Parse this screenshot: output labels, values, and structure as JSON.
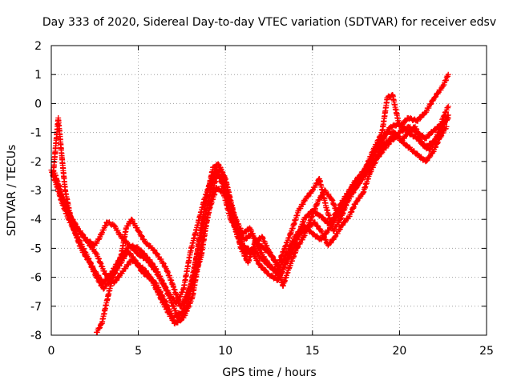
{
  "chart_data": {
    "type": "scatter",
    "title": "Day 333 of 2020, Sidereal Day-to-day VTEC variation (SDTVAR) for receiver edsv",
    "xlabel": "GPS time / hours",
    "ylabel": "SDTVAR / TECUs",
    "xlim": [
      0,
      25
    ],
    "ylim": [
      -8,
      2
    ],
    "xticks": [
      "0",
      "5",
      "10",
      "15",
      "20",
      "25"
    ],
    "yticks": [
      "-8",
      "-7",
      "-6",
      "-5",
      "-4",
      "-3",
      "-2",
      "-1",
      "0",
      "1",
      "2"
    ],
    "grid": true,
    "marker": "+",
    "colors": {
      "series": "#ff0000",
      "grid": "#a0a0a0",
      "axis": "#000000"
    },
    "series": [
      {
        "values": [
          [
            0.0,
            -2.3
          ],
          [
            0.3,
            -2.8
          ],
          [
            0.6,
            -3.4
          ],
          [
            1.0,
            -4.0
          ],
          [
            1.5,
            -4.6
          ],
          [
            2.0,
            -5.2
          ],
          [
            2.5,
            -5.8
          ],
          [
            3.0,
            -6.2
          ],
          [
            3.5,
            -5.8
          ],
          [
            4.0,
            -5.3
          ],
          [
            4.5,
            -4.9
          ],
          [
            5.0,
            -5.0
          ],
          [
            5.5,
            -5.3
          ],
          [
            6.0,
            -5.7
          ],
          [
            6.5,
            -6.3
          ],
          [
            7.0,
            -7.0
          ],
          [
            7.4,
            -7.5
          ],
          [
            7.8,
            -7.0
          ],
          [
            8.2,
            -5.8
          ],
          [
            8.6,
            -4.3
          ],
          [
            9.0,
            -3.0
          ],
          [
            9.3,
            -2.2
          ],
          [
            9.6,
            -2.1
          ],
          [
            10.0,
            -2.6
          ],
          [
            10.4,
            -3.6
          ],
          [
            10.8,
            -4.6
          ],
          [
            11.2,
            -5.2
          ],
          [
            11.6,
            -5.0
          ],
          [
            12.0,
            -5.3
          ],
          [
            12.5,
            -5.6
          ],
          [
            13.0,
            -5.8
          ],
          [
            13.5,
            -5.2
          ],
          [
            14.0,
            -4.6
          ],
          [
            14.5,
            -4.2
          ],
          [
            15.0,
            -4.5
          ],
          [
            15.5,
            -4.7
          ],
          [
            16.0,
            -4.3
          ],
          [
            16.5,
            -3.8
          ],
          [
            17.0,
            -3.2
          ],
          [
            17.5,
            -2.9
          ],
          [
            18.0,
            -2.5
          ],
          [
            18.5,
            -2.0
          ],
          [
            19.0,
            -1.5
          ],
          [
            19.5,
            -1.2
          ],
          [
            20.0,
            -1.0
          ],
          [
            20.5,
            -0.8
          ],
          [
            21.0,
            -1.0
          ],
          [
            21.5,
            -1.2
          ],
          [
            22.0,
            -0.9
          ],
          [
            22.5,
            -0.7
          ],
          [
            22.8,
            -0.5
          ]
        ]
      },
      {
        "values": [
          [
            0.2,
            -2.4
          ],
          [
            0.5,
            -3.1
          ],
          [
            1.0,
            -3.8
          ],
          [
            1.5,
            -4.3
          ],
          [
            2.0,
            -4.7
          ],
          [
            2.5,
            -4.9
          ],
          [
            2.8,
            -4.6
          ],
          [
            3.2,
            -4.1
          ],
          [
            3.6,
            -4.2
          ],
          [
            4.0,
            -4.6
          ],
          [
            4.5,
            -4.9
          ],
          [
            5.0,
            -5.2
          ],
          [
            5.5,
            -5.4
          ],
          [
            6.0,
            -5.8
          ],
          [
            6.4,
            -6.2
          ],
          [
            6.8,
            -6.6
          ],
          [
            7.2,
            -6.9
          ],
          [
            7.6,
            -6.4
          ],
          [
            8.0,
            -5.1
          ],
          [
            8.4,
            -4.2
          ],
          [
            8.8,
            -3.3
          ],
          [
            9.2,
            -2.6
          ],
          [
            9.5,
            -2.3
          ],
          [
            9.9,
            -2.9
          ],
          [
            10.3,
            -3.8
          ],
          [
            10.7,
            -4.6
          ],
          [
            11.0,
            -4.9
          ],
          [
            11.5,
            -5.1
          ],
          [
            12.0,
            -5.6
          ],
          [
            12.5,
            -5.9
          ],
          [
            13.0,
            -6.1
          ],
          [
            13.5,
            -5.5
          ],
          [
            14.0,
            -4.9
          ],
          [
            14.5,
            -4.0
          ],
          [
            15.0,
            -3.7
          ],
          [
            15.5,
            -3.9
          ],
          [
            16.0,
            -4.2
          ],
          [
            16.5,
            -3.6
          ],
          [
            17.0,
            -3.1
          ],
          [
            17.5,
            -2.7
          ],
          [
            18.0,
            -2.3
          ],
          [
            18.5,
            -1.6
          ],
          [
            19.0,
            -1.0
          ],
          [
            19.3,
            0.2
          ],
          [
            19.6,
            0.3
          ],
          [
            20.0,
            -0.8
          ],
          [
            20.5,
            -0.5
          ],
          [
            21.0,
            -0.6
          ],
          [
            21.5,
            -0.3
          ],
          [
            22.0,
            0.2
          ],
          [
            22.5,
            0.6
          ],
          [
            22.8,
            1.0
          ]
        ]
      },
      {
        "values": [
          [
            0.1,
            -2.5
          ],
          [
            0.4,
            -0.5
          ],
          [
            0.6,
            -1.8
          ],
          [
            0.8,
            -3.0
          ],
          [
            1.2,
            -4.2
          ],
          [
            1.7,
            -5.0
          ],
          [
            2.2,
            -5.5
          ],
          [
            2.6,
            -6.0
          ],
          [
            3.0,
            -6.4
          ],
          [
            3.5,
            -6.0
          ],
          [
            4.0,
            -5.5
          ],
          [
            4.4,
            -5.1
          ],
          [
            4.8,
            -5.4
          ],
          [
            5.2,
            -5.8
          ],
          [
            5.6,
            -6.0
          ],
          [
            6.0,
            -6.2
          ],
          [
            6.5,
            -6.8
          ],
          [
            7.0,
            -7.4
          ],
          [
            7.5,
            -7.2
          ],
          [
            8.0,
            -6.3
          ],
          [
            8.5,
            -4.8
          ],
          [
            9.0,
            -3.4
          ],
          [
            9.4,
            -2.4
          ],
          [
            9.8,
            -2.6
          ],
          [
            10.2,
            -3.3
          ],
          [
            10.6,
            -4.0
          ],
          [
            11.0,
            -4.5
          ],
          [
            11.4,
            -4.3
          ],
          [
            11.8,
            -4.8
          ],
          [
            12.2,
            -5.0
          ],
          [
            12.6,
            -5.2
          ],
          [
            13.0,
            -5.6
          ],
          [
            13.4,
            -5.0
          ],
          [
            13.8,
            -4.4
          ],
          [
            14.2,
            -3.7
          ],
          [
            14.6,
            -3.3
          ],
          [
            15.0,
            -3.0
          ],
          [
            15.4,
            -2.6
          ],
          [
            15.8,
            -3.6
          ],
          [
            16.2,
            -4.4
          ],
          [
            16.6,
            -4.0
          ],
          [
            17.0,
            -3.4
          ],
          [
            17.4,
            -3.0
          ],
          [
            17.8,
            -2.6
          ],
          [
            18.2,
            -2.2
          ],
          [
            18.6,
            -1.6
          ],
          [
            19.0,
            -1.2
          ],
          [
            19.5,
            -0.8
          ],
          [
            20.0,
            -0.7
          ],
          [
            20.5,
            -1.0
          ],
          [
            21.0,
            -1.2
          ],
          [
            21.5,
            -1.5
          ],
          [
            22.0,
            -1.3
          ],
          [
            22.5,
            -0.8
          ],
          [
            22.8,
            -0.4
          ]
        ]
      },
      {
        "values": [
          [
            2.6,
            -7.9
          ],
          [
            2.9,
            -7.6
          ],
          [
            3.2,
            -6.8
          ],
          [
            3.6,
            -5.8
          ],
          [
            4.0,
            -5.3
          ],
          [
            4.3,
            -4.3
          ],
          [
            4.6,
            -4.0
          ],
          [
            5.0,
            -4.4
          ],
          [
            5.4,
            -4.8
          ],
          [
            5.8,
            -5.0
          ],
          [
            6.2,
            -5.3
          ],
          [
            6.6,
            -5.7
          ],
          [
            7.0,
            -6.3
          ],
          [
            7.4,
            -7.0
          ],
          [
            7.8,
            -6.6
          ],
          [
            8.2,
            -6.0
          ],
          [
            8.6,
            -5.3
          ],
          [
            9.0,
            -3.8
          ],
          [
            9.4,
            -2.7
          ],
          [
            9.7,
            -2.2
          ],
          [
            10.1,
            -2.9
          ],
          [
            10.5,
            -4.1
          ],
          [
            10.9,
            -5.0
          ],
          [
            11.3,
            -5.5
          ],
          [
            11.7,
            -4.8
          ],
          [
            12.1,
            -4.6
          ],
          [
            12.5,
            -5.1
          ],
          [
            12.9,
            -5.5
          ],
          [
            13.3,
            -6.3
          ],
          [
            13.7,
            -5.6
          ],
          [
            14.1,
            -5.0
          ],
          [
            14.5,
            -4.6
          ],
          [
            14.9,
            -4.0
          ],
          [
            15.3,
            -3.4
          ],
          [
            15.7,
            -3.0
          ],
          [
            16.1,
            -3.3
          ],
          [
            16.5,
            -3.9
          ],
          [
            16.9,
            -3.5
          ],
          [
            17.3,
            -2.8
          ],
          [
            17.7,
            -2.5
          ],
          [
            18.1,
            -2.2
          ],
          [
            18.5,
            -1.8
          ],
          [
            18.9,
            -1.4
          ],
          [
            19.3,
            -1.0
          ],
          [
            19.7,
            -1.0
          ],
          [
            20.1,
            -1.3
          ],
          [
            20.5,
            -1.0
          ],
          [
            20.9,
            -0.8
          ],
          [
            21.3,
            -1.4
          ],
          [
            21.7,
            -1.6
          ],
          [
            22.1,
            -1.2
          ],
          [
            22.5,
            -0.5
          ],
          [
            22.8,
            -0.1
          ]
        ]
      },
      {
        "values": [
          [
            0.3,
            -2.6
          ],
          [
            0.7,
            -3.3
          ],
          [
            1.1,
            -3.9
          ],
          [
            1.6,
            -4.4
          ],
          [
            2.1,
            -4.8
          ],
          [
            2.6,
            -5.2
          ],
          [
            3.1,
            -5.9
          ],
          [
            3.6,
            -6.2
          ],
          [
            4.1,
            -5.8
          ],
          [
            4.6,
            -5.4
          ],
          [
            5.1,
            -5.6
          ],
          [
            5.6,
            -5.9
          ],
          [
            6.1,
            -6.5
          ],
          [
            6.6,
            -7.1
          ],
          [
            7.1,
            -7.6
          ],
          [
            7.6,
            -7.4
          ],
          [
            8.1,
            -6.7
          ],
          [
            8.6,
            -5.0
          ],
          [
            9.1,
            -3.6
          ],
          [
            9.5,
            -2.9
          ],
          [
            9.9,
            -3.1
          ],
          [
            10.3,
            -4.0
          ],
          [
            10.7,
            -4.4
          ],
          [
            11.1,
            -4.7
          ],
          [
            11.5,
            -4.5
          ],
          [
            11.9,
            -5.0
          ],
          [
            12.3,
            -5.4
          ],
          [
            12.7,
            -5.7
          ],
          [
            13.1,
            -6.0
          ],
          [
            13.5,
            -5.4
          ],
          [
            13.9,
            -4.8
          ],
          [
            14.3,
            -4.5
          ],
          [
            14.7,
            -4.3
          ],
          [
            15.1,
            -4.1
          ],
          [
            15.5,
            -4.4
          ],
          [
            15.9,
            -4.9
          ],
          [
            16.3,
            -4.6
          ],
          [
            16.7,
            -4.2
          ],
          [
            17.1,
            -3.9
          ],
          [
            17.5,
            -3.4
          ],
          [
            17.9,
            -3.1
          ],
          [
            18.3,
            -2.4
          ],
          [
            18.7,
            -1.9
          ],
          [
            19.1,
            -1.6
          ],
          [
            19.5,
            -1.3
          ],
          [
            19.9,
            -1.1
          ],
          [
            20.3,
            -1.4
          ],
          [
            20.7,
            -1.6
          ],
          [
            21.1,
            -1.8
          ],
          [
            21.5,
            -2.0
          ],
          [
            21.9,
            -1.7
          ],
          [
            22.3,
            -1.2
          ],
          [
            22.7,
            -0.8
          ]
        ]
      }
    ]
  }
}
